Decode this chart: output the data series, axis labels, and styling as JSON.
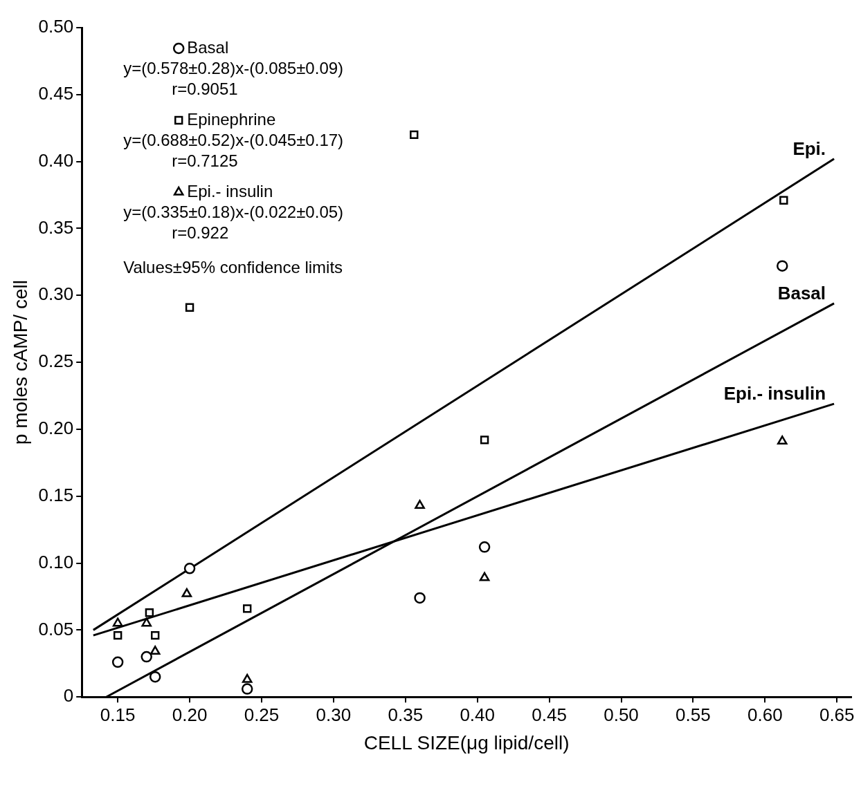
{
  "chart_data": {
    "type": "scatter",
    "xlabel": "CELL SIZE(μg lipid/cell)",
    "ylabel": "p moles cAMP/ cell",
    "xlim": [
      0.125,
      0.66
    ],
    "ylim": [
      0,
      0.5
    ],
    "xticks": [
      0.15,
      {
        "value": 0.2,
        "label": "0.20"
      },
      0.25,
      {
        "value": 0.3,
        "label": "0.30"
      },
      0.35,
      {
        "value": 0.4,
        "label": "0.40"
      },
      0.45,
      {
        "value": 0.5,
        "label": "0.50"
      },
      0.55,
      {
        "value": 0.6,
        "label": "0.60"
      },
      0.65
    ],
    "yticks": [
      0,
      0.05,
      {
        "value": 0.1,
        "label": "0.10"
      },
      0.15,
      {
        "value": 0.2,
        "label": "0.20"
      },
      0.25,
      {
        "value": 0.3,
        "label": "0.30"
      },
      0.35,
      {
        "value": 0.4,
        "label": "0.40"
      },
      0.45,
      {
        "value": 0.5,
        "label": "0.50"
      }
    ],
    "grid": false,
    "legend": "top left",
    "series": [
      {
        "name": "Basal",
        "type": "scatter",
        "marker": "circle",
        "color": "#000000",
        "x": [
          0.15,
          0.17,
          0.176,
          0.2,
          0.24,
          0.36,
          0.405,
          0.612
        ],
        "values": [
          0.026,
          0.03,
          0.015,
          0.096,
          0.006,
          0.074,
          0.112,
          0.322
        ]
      },
      {
        "name": "Epinephrine",
        "type": "scatter",
        "marker": "square",
        "color": "#000000",
        "x": [
          0.15,
          0.172,
          0.176,
          0.2,
          0.24,
          0.356,
          0.405,
          0.613
        ],
        "values": [
          0.046,
          0.063,
          0.046,
          0.291,
          0.066,
          0.42,
          0.192,
          0.371
        ]
      },
      {
        "name": "Epi.- insulin",
        "type": "scatter",
        "marker": "triangle",
        "color": "#000000",
        "x": [
          0.15,
          0.17,
          0.176,
          0.198,
          0.24,
          0.36,
          0.405,
          0.612
        ],
        "values": [
          0.055,
          0.055,
          0.034,
          0.077,
          0.013,
          0.143,
          0.089,
          0.191
        ]
      },
      {
        "name": "Epi.",
        "type": "line",
        "marker": "none",
        "line_style": "solid",
        "color": "#000000",
        "x": [
          0.133,
          0.648
        ],
        "values": [
          0.05,
          0.402
        ]
      },
      {
        "name": "Basal",
        "type": "line",
        "marker": "none",
        "line_style": "solid",
        "color": "#000000",
        "x": [
          0.142,
          0.648
        ],
        "values": [
          0,
          0.294
        ]
      },
      {
        "name": "Epi.- insulin",
        "type": "line",
        "marker": "none",
        "line_style": "solid",
        "color": "#000000",
        "x": [
          0.133,
          0.648
        ],
        "values": [
          0.046,
          0.219
        ]
      }
    ],
    "annotations": [
      "y=(0.578±0.28)x-(0.085±0.09)",
      "r=0.9051",
      "y=(0.688±0.52)x-(0.045±0.17)",
      "r=0.7125",
      "y=(0.335±0.18)x-(0.022±0.05)",
      "r=0.922",
      "Values±95% confidence limits"
    ]
  }
}
